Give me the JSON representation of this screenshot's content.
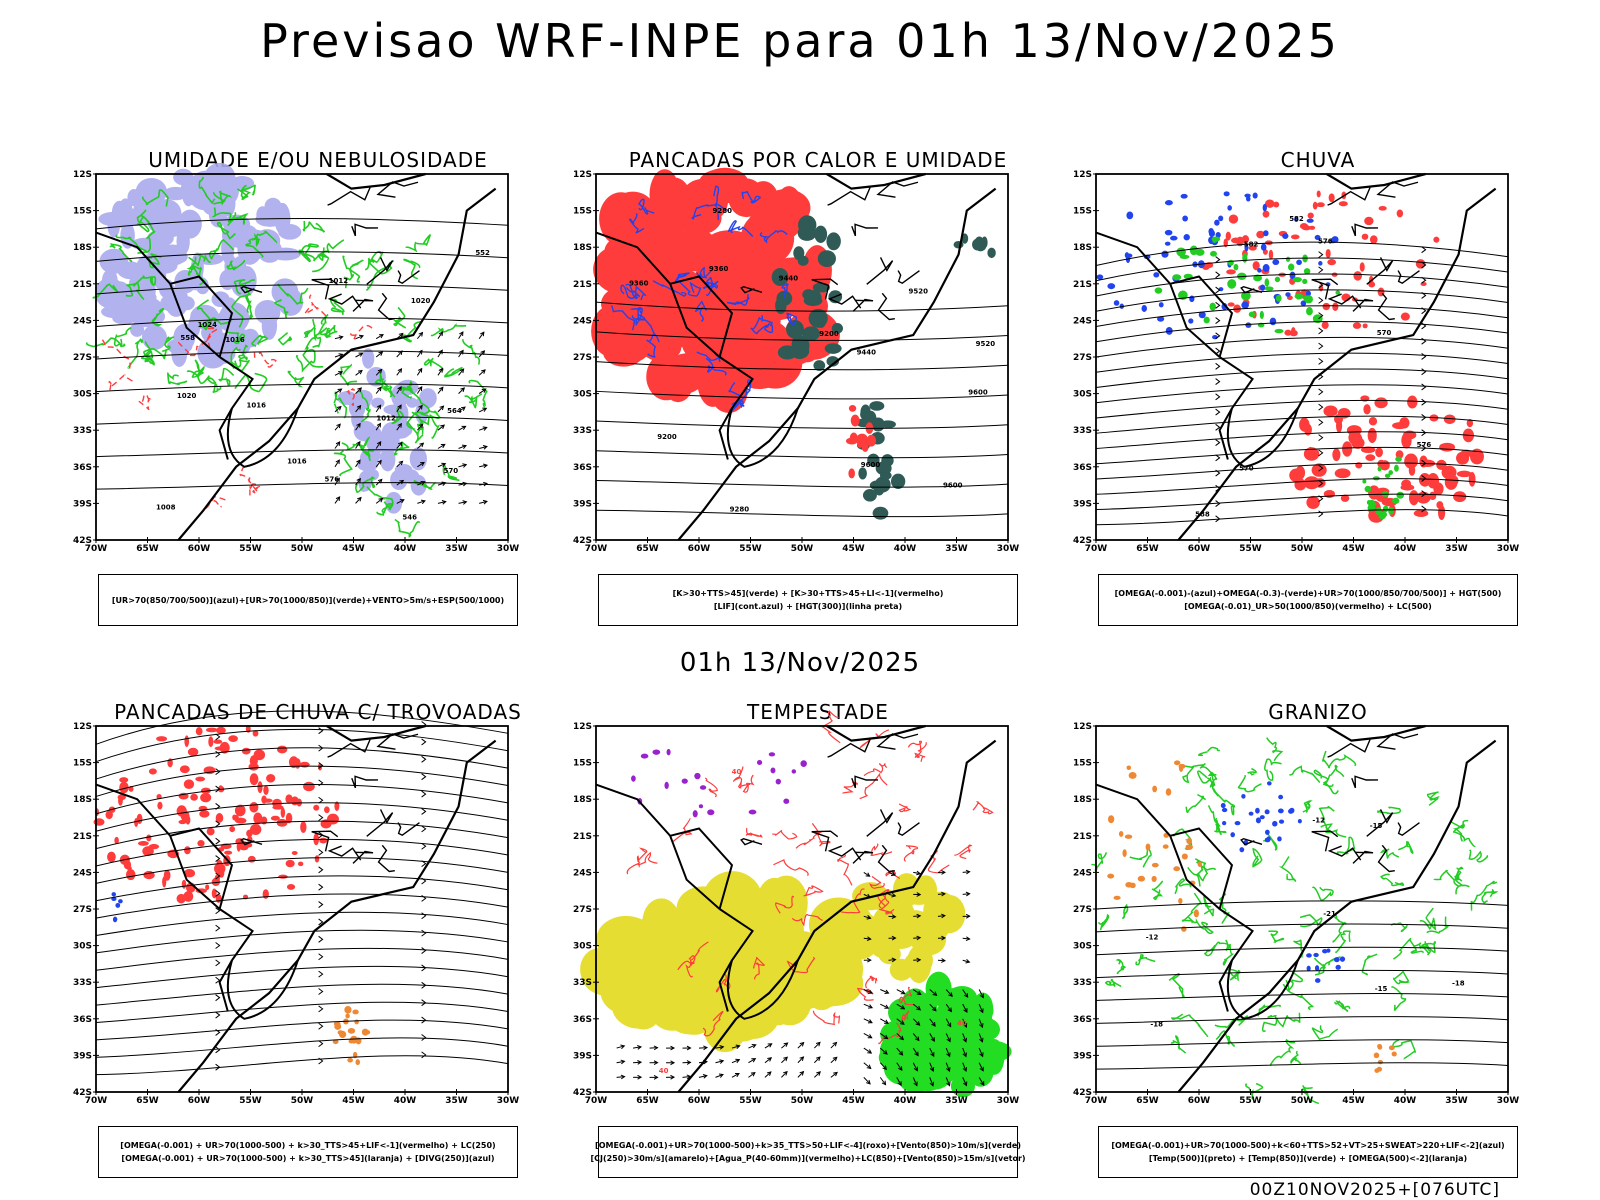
{
  "header": {
    "title": "Previsao WRF-INPE  para 01h 13/Nov/2025"
  },
  "mid_header": {
    "title": "01h 13/Nov/2025"
  },
  "footer": {
    "stamp": "00Z10NOV2025+[076UTC]"
  },
  "axes": {
    "lat_labels": [
      "12S",
      "15S",
      "18S",
      "21S",
      "24S",
      "27S",
      "30S",
      "33S",
      "36S",
      "39S",
      "42S"
    ],
    "lon_labels": [
      "70W",
      "65W",
      "60W",
      "55W",
      "50W",
      "45W",
      "40W",
      "35W",
      "30W"
    ]
  },
  "colors": {
    "blue_fill": "#aaaaee",
    "green": "#22cc22",
    "red": "#ff3c3c",
    "dark_teal": "#2f5a55",
    "blue": "#2244ee",
    "orange": "#ee8833",
    "yellow": "#e6dd33",
    "purple": "#9922cc",
    "bright_green": "#22dd22"
  },
  "panels": [
    {
      "id": "umidade",
      "title": "UMIDADE E/OU NEBULOSIDADE",
      "legend": [
        "[UR>70(850/700/500)](azul)+[UR>70(1000/850)](verde)+VENTO>5m/s+ESP(500/1000)"
      ],
      "contour_labels": [
        "1012",
        "1012",
        "1016",
        "1020",
        "1024",
        "1016",
        "1020",
        "570",
        "576",
        "564",
        "558",
        "552",
        "546",
        "1016",
        "1008"
      ]
    },
    {
      "id": "pancadas_calor",
      "title": "PANCADAS POR CALOR E UMIDADE",
      "legend": [
        "[K>30+TTS>45](verde) + [K>30+TTS>45+LI<-1](vermelho)",
        "[LIF](cont.azul) + [HGT(300)](linha preta)"
      ],
      "contour_labels": [
        "9600",
        "9600",
        "9520",
        "9440",
        "9360",
        "9280",
        "9200",
        "9600",
        "9520",
        "9440",
        "9360",
        "9280",
        "9200"
      ]
    },
    {
      "id": "chuva",
      "title": "CHUVA",
      "legend": [
        "[OMEGA(-0.001)-(azul)+OMEGA(-0.3)-(verde)+UR>70(1000/850/700/500)] + HGT(500)",
        "[OMEGA(-0.01)_UR>50(1000/850)(vermelho) + LC(500)"
      ],
      "contour_labels": [
        "582",
        "576",
        "570",
        "588",
        "582",
        "576",
        "570"
      ]
    },
    {
      "id": "pancadas_trovoadas",
      "title": "PANCADAS DE CHUVA C/ TROVOADAS",
      "legend": [
        "[OMEGA(-0.001) + UR>70(1000-500) + k>30_TTS>45+LIF<-1](vermelho) + LC(250)",
        "[OMEGA(-0.001) + UR>70(1000-500) + k>30_TTS>45](laranja) + [DIVG(250)](azul)"
      ],
      "contour_labels": []
    },
    {
      "id": "tempestade",
      "title": "TEMPESTADE",
      "legend": [
        "[OMEGA(-0.001)+UR>70(1000-500)+k>35_TTS>50+LIF<-4](roxo)+[Vento(850)>10m/s](verde)",
        "[CJ(250)>30m/s](amarelo)+[Agua_P(40-60mm)](vermelho)+LC(850)+[Vento(850)>15m/s](vetor)"
      ],
      "contour_labels": [
        "40",
        "40",
        "40"
      ]
    },
    {
      "id": "granizo",
      "title": "GRANIZO",
      "legend": [
        "[OMEGA(-0.001)+UR>70(1000-500)+k<60+TTS>52+VT>25+SWEAT>220+LIF<-2](azul)",
        "[Temp(500)](preto) + [Temp(850)](verde) + [OMEGA(500)<-2](laranja)"
      ],
      "contour_labels": [
        "-12",
        "-15",
        "-15",
        "-18",
        "-21",
        "-12",
        "-18"
      ]
    }
  ]
}
